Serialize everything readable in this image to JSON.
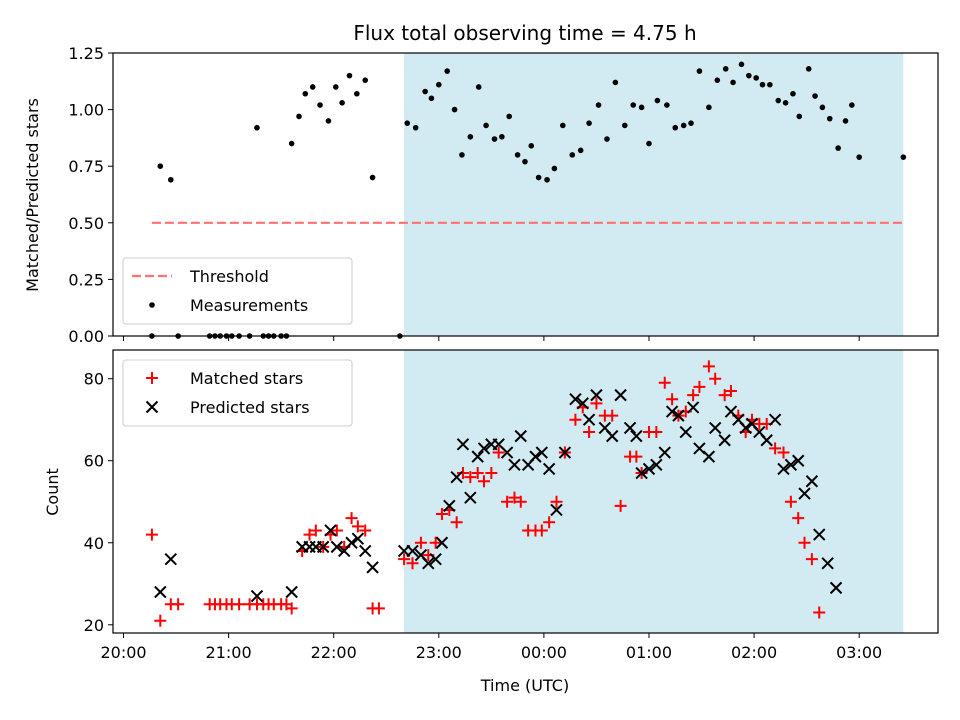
{
  "chart_data": [
    {
      "type": "scatter",
      "title": "Flux total observing time = 4.75 h",
      "xlabel": "",
      "ylabel": "Matched/Predicted stars",
      "xlim": [
        -0.1,
        7.75
      ],
      "ylim": [
        0.0,
        1.25
      ],
      "yticks": [
        0.0,
        0.25,
        0.5,
        0.75,
        1.0,
        1.25
      ],
      "ytick_labels": [
        "0.00",
        "0.25",
        "0.50",
        "0.75",
        "1.00",
        "1.25"
      ],
      "shaded_interval": [
        2.67,
        7.42
      ],
      "shade_color": "#add8e6",
      "legend": {
        "position": "lower-left",
        "entries": [
          "Threshold",
          "Measurements"
        ]
      },
      "series": [
        {
          "name": "Threshold",
          "kind": "dashed-line",
          "color": "#ff7070",
          "points": [
            [
              0.27,
              0.5
            ],
            [
              7.42,
              0.5
            ]
          ]
        },
        {
          "name": "Measurements",
          "kind": "dot",
          "color": "#000000",
          "points": [
            [
              0.27,
              0.0
            ],
            [
              0.35,
              0.75
            ],
            [
              0.45,
              0.69
            ],
            [
              0.52,
              0.0
            ],
            [
              0.82,
              0.0
            ],
            [
              0.87,
              0.0
            ],
            [
              0.92,
              0.0
            ],
            [
              0.98,
              0.0
            ],
            [
              1.03,
              0.0
            ],
            [
              1.1,
              0.0
            ],
            [
              1.2,
              0.0
            ],
            [
              1.27,
              0.92
            ],
            [
              1.33,
              0.0
            ],
            [
              1.38,
              0.0
            ],
            [
              1.43,
              0.0
            ],
            [
              1.5,
              0.0
            ],
            [
              1.55,
              0.0
            ],
            [
              1.6,
              0.85
            ],
            [
              1.67,
              0.97
            ],
            [
              1.73,
              1.07
            ],
            [
              1.8,
              1.1
            ],
            [
              1.87,
              1.02
            ],
            [
              1.95,
              0.95
            ],
            [
              2.02,
              1.1
            ],
            [
              2.08,
              1.03
            ],
            [
              2.15,
              1.15
            ],
            [
              2.22,
              1.07
            ],
            [
              2.3,
              1.13
            ],
            [
              2.37,
              0.7
            ],
            [
              2.63,
              0.0
            ],
            [
              2.7,
              0.94
            ],
            [
              2.78,
              0.92
            ],
            [
              2.87,
              1.08
            ],
            [
              2.93,
              1.05
            ],
            [
              3.0,
              1.11
            ],
            [
              3.08,
              1.17
            ],
            [
              3.15,
              1.0
            ],
            [
              3.22,
              0.8
            ],
            [
              3.3,
              0.88
            ],
            [
              3.38,
              1.1
            ],
            [
              3.45,
              0.93
            ],
            [
              3.53,
              0.87
            ],
            [
              3.6,
              0.88
            ],
            [
              3.67,
              0.97
            ],
            [
              3.75,
              0.8
            ],
            [
              3.82,
              0.77
            ],
            [
              3.88,
              0.84
            ],
            [
              3.95,
              0.7
            ],
            [
              4.03,
              0.69
            ],
            [
              4.1,
              0.74
            ],
            [
              4.18,
              0.93
            ],
            [
              4.27,
              0.8
            ],
            [
              4.35,
              0.82
            ],
            [
              4.43,
              0.94
            ],
            [
              4.52,
              1.02
            ],
            [
              4.6,
              0.87
            ],
            [
              4.68,
              1.12
            ],
            [
              4.77,
              0.93
            ],
            [
              4.85,
              1.02
            ],
            [
              4.93,
              1.01
            ],
            [
              5.0,
              0.85
            ],
            [
              5.08,
              1.04
            ],
            [
              5.17,
              1.02
            ],
            [
              5.25,
              0.92
            ],
            [
              5.33,
              0.93
            ],
            [
              5.4,
              0.94
            ],
            [
              5.48,
              1.17
            ],
            [
              5.57,
              1.01
            ],
            [
              5.65,
              1.13
            ],
            [
              5.73,
              1.18
            ],
            [
              5.8,
              1.12
            ],
            [
              5.88,
              1.2
            ],
            [
              5.95,
              1.15
            ],
            [
              6.02,
              1.14
            ],
            [
              6.08,
              1.11
            ],
            [
              6.15,
              1.11
            ],
            [
              6.23,
              1.04
            ],
            [
              6.3,
              1.03
            ],
            [
              6.37,
              1.07
            ],
            [
              6.43,
              0.97
            ],
            [
              6.52,
              1.18
            ],
            [
              6.58,
              1.06
            ],
            [
              6.65,
              1.01
            ],
            [
              6.72,
              0.96
            ],
            [
              6.8,
              0.83
            ],
            [
              6.87,
              0.95
            ],
            [
              6.93,
              1.02
            ],
            [
              7.0,
              0.79
            ],
            [
              7.42,
              0.79
            ]
          ]
        }
      ]
    },
    {
      "type": "scatter",
      "title": "",
      "xlabel": "Time (UTC)",
      "ylabel": "Count",
      "xlim": [
        -0.1,
        7.75
      ],
      "ylim": [
        18,
        87
      ],
      "yticks": [
        20,
        40,
        60,
        80
      ],
      "ytick_labels": [
        "20",
        "40",
        "60",
        "80"
      ],
      "xticks": [
        0,
        1,
        2,
        3,
        4,
        5,
        6,
        7
      ],
      "xtick_labels": [
        "20:00",
        "21:00",
        "22:00",
        "23:00",
        "00:00",
        "01:00",
        "02:00",
        "03:00"
      ],
      "shaded_interval": [
        2.67,
        7.42
      ],
      "shade_color": "#add8e6",
      "legend": {
        "position": "top-left",
        "entries": [
          "Matched stars",
          "Predicted stars"
        ]
      },
      "series": [
        {
          "name": "Matched stars",
          "kind": "plus",
          "color": "#ff0000",
          "points": [
            [
              0.27,
              42
            ],
            [
              0.35,
              21
            ],
            [
              0.45,
              25
            ],
            [
              0.52,
              25
            ],
            [
              0.82,
              25
            ],
            [
              0.87,
              25
            ],
            [
              0.92,
              25
            ],
            [
              0.98,
              25
            ],
            [
              1.03,
              25
            ],
            [
              1.1,
              25
            ],
            [
              1.2,
              25
            ],
            [
              1.27,
              25
            ],
            [
              1.33,
              25
            ],
            [
              1.38,
              25
            ],
            [
              1.43,
              25
            ],
            [
              1.5,
              25
            ],
            [
              1.55,
              25
            ],
            [
              1.6,
              24
            ],
            [
              1.7,
              38
            ],
            [
              1.77,
              42
            ],
            [
              1.83,
              43
            ],
            [
              1.9,
              39
            ],
            [
              1.97,
              42
            ],
            [
              2.03,
              43
            ],
            [
              2.1,
              39
            ],
            [
              2.17,
              46
            ],
            [
              2.23,
              44
            ],
            [
              2.3,
              43
            ],
            [
              2.37,
              24
            ],
            [
              2.43,
              24
            ],
            [
              2.67,
              36
            ],
            [
              2.75,
              35
            ],
            [
              2.83,
              40
            ],
            [
              2.9,
              37
            ],
            [
              2.97,
              40
            ],
            [
              3.03,
              47
            ],
            [
              3.1,
              48
            ],
            [
              3.17,
              45
            ],
            [
              3.23,
              57
            ],
            [
              3.3,
              56
            ],
            [
              3.37,
              57
            ],
            [
              3.43,
              55
            ],
            [
              3.5,
              57
            ],
            [
              3.57,
              62
            ],
            [
              3.65,
              50
            ],
            [
              3.72,
              51
            ],
            [
              3.78,
              50
            ],
            [
              3.85,
              43
            ],
            [
              3.92,
              43
            ],
            [
              3.98,
              43
            ],
            [
              4.05,
              45
            ],
            [
              4.12,
              50
            ],
            [
              4.2,
              62
            ],
            [
              4.3,
              70
            ],
            [
              4.37,
              73
            ],
            [
              4.43,
              67
            ],
            [
              4.5,
              74
            ],
            [
              4.58,
              71
            ],
            [
              4.65,
              71
            ],
            [
              4.73,
              49
            ],
            [
              4.82,
              61
            ],
            [
              4.88,
              61
            ],
            [
              4.93,
              57
            ],
            [
              5.0,
              67
            ],
            [
              5.07,
              67
            ],
            [
              5.15,
              79
            ],
            [
              5.22,
              75
            ],
            [
              5.28,
              71
            ],
            [
              5.35,
              72
            ],
            [
              5.42,
              76
            ],
            [
              5.48,
              78
            ],
            [
              5.57,
              83
            ],
            [
              5.63,
              80
            ],
            [
              5.72,
              76
            ],
            [
              5.78,
              77
            ],
            [
              5.85,
              71
            ],
            [
              5.92,
              67
            ],
            [
              5.98,
              70
            ],
            [
              6.05,
              69
            ],
            [
              6.12,
              69
            ],
            [
              6.2,
              63
            ],
            [
              6.28,
              62
            ],
            [
              6.35,
              50
            ],
            [
              6.42,
              46
            ],
            [
              6.48,
              40
            ],
            [
              6.55,
              36
            ],
            [
              6.62,
              23
            ]
          ]
        },
        {
          "name": "Predicted stars",
          "kind": "cross",
          "color": "#000000",
          "points": [
            [
              0.35,
              28
            ],
            [
              0.45,
              36
            ],
            [
              1.27,
              27
            ],
            [
              1.6,
              28
            ],
            [
              1.7,
              39
            ],
            [
              1.77,
              39
            ],
            [
              1.83,
              39
            ],
            [
              1.9,
              39
            ],
            [
              1.97,
              43
            ],
            [
              2.03,
              39
            ],
            [
              2.1,
              38
            ],
            [
              2.17,
              40
            ],
            [
              2.23,
              41
            ],
            [
              2.3,
              38
            ],
            [
              2.37,
              34
            ],
            [
              2.67,
              38
            ],
            [
              2.75,
              38
            ],
            [
              2.83,
              37
            ],
            [
              2.9,
              35
            ],
            [
              2.97,
              36
            ],
            [
              3.03,
              40
            ],
            [
              3.1,
              49
            ],
            [
              3.17,
              56
            ],
            [
              3.23,
              64
            ],
            [
              3.3,
              51
            ],
            [
              3.37,
              61
            ],
            [
              3.43,
              63
            ],
            [
              3.5,
              64
            ],
            [
              3.57,
              64
            ],
            [
              3.65,
              62
            ],
            [
              3.72,
              59
            ],
            [
              3.78,
              66
            ],
            [
              3.85,
              59
            ],
            [
              3.92,
              61
            ],
            [
              3.98,
              62
            ],
            [
              4.05,
              58
            ],
            [
              4.12,
              48
            ],
            [
              4.2,
              62
            ],
            [
              4.3,
              75
            ],
            [
              4.37,
              74
            ],
            [
              4.43,
              70
            ],
            [
              4.5,
              76
            ],
            [
              4.58,
              68
            ],
            [
              4.65,
              66
            ],
            [
              4.73,
              76
            ],
            [
              4.82,
              68
            ],
            [
              4.88,
              66
            ],
            [
              4.93,
              57
            ],
            [
              5.0,
              58
            ],
            [
              5.07,
              59
            ],
            [
              5.15,
              62
            ],
            [
              5.22,
              72
            ],
            [
              5.28,
              71
            ],
            [
              5.35,
              67
            ],
            [
              5.42,
              73
            ],
            [
              5.48,
              63
            ],
            [
              5.57,
              61
            ],
            [
              5.63,
              68
            ],
            [
              5.72,
              65
            ],
            [
              5.78,
              72
            ],
            [
              5.85,
              70
            ],
            [
              5.92,
              68
            ],
            [
              5.98,
              69
            ],
            [
              6.05,
              67
            ],
            [
              6.12,
              65
            ],
            [
              6.2,
              70
            ],
            [
              6.28,
              58
            ],
            [
              6.35,
              59
            ],
            [
              6.42,
              60
            ],
            [
              6.48,
              52
            ],
            [
              6.55,
              55
            ],
            [
              6.62,
              42
            ],
            [
              6.7,
              35
            ],
            [
              6.78,
              29
            ]
          ]
        }
      ]
    }
  ]
}
